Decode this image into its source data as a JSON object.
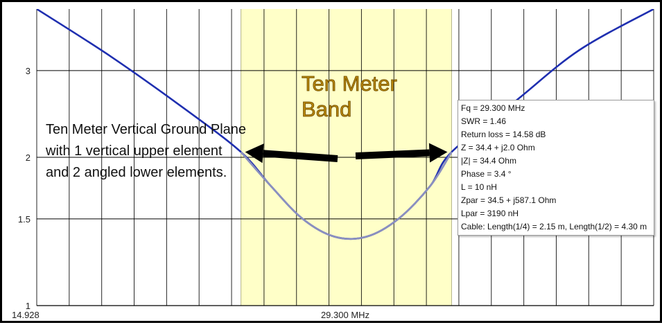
{
  "chart_data": {
    "type": "line",
    "title": "",
    "xlabel": "",
    "ylabel": "",
    "y_scale": "log",
    "ylim": [
      1,
      4
    ],
    "y_ticks": [
      "3",
      "2",
      "1.5",
      "1"
    ],
    "x_tick_labels": [
      "14.928",
      "29.300 MHz"
    ],
    "grid": true,
    "series": [
      {
        "color": "#1f2fb0",
        "band_color": "#8a8fc0",
        "points": [
          {
            "x": 28.0,
            "y": 4.0
          },
          {
            "x": 28.35,
            "y": 3.2
          },
          {
            "x": 28.7,
            "y": 2.5
          },
          {
            "x": 28.96,
            "y": 2.05
          },
          {
            "x": 29.1,
            "y": 1.75
          },
          {
            "x": 29.25,
            "y": 1.5
          },
          {
            "x": 29.4,
            "y": 1.38
          },
          {
            "x": 29.55,
            "y": 1.38
          },
          {
            "x": 29.7,
            "y": 1.5
          },
          {
            "x": 29.85,
            "y": 1.75
          },
          {
            "x": 29.95,
            "y": 2.05
          },
          {
            "x": 30.25,
            "y": 2.6
          },
          {
            "x": 30.55,
            "y": 3.3
          },
          {
            "x": 30.9,
            "y": 4.0
          }
        ]
      }
    ],
    "band": {
      "x_start": 28.96,
      "x_end": 29.95,
      "color": "#ffffc8"
    },
    "annotations": {
      "note_lines": [
        "Ten Meter Vertical Ground Plane",
        "with 1 vertical upper element",
        "and 2 angled lower elements."
      ],
      "band_title_lines": [
        "Ten Meter",
        "Band"
      ]
    },
    "tooltip": [
      "Fq = 29.300 MHz",
      "SWR = 1.46",
      "Return loss = 14.58 dB",
      "Z = 34.4 + j2.0 Ohm",
      "|Z| = 34.4 Ohm",
      "Phase = 3.4 °",
      "L = 10 nH",
      "Zpar = 34.5 + j587.1 Ohm",
      "Lpar = 3190 nH",
      "Cable: Length(1/4) = 2.15 m, Length(1/2) = 4.30 m"
    ]
  }
}
